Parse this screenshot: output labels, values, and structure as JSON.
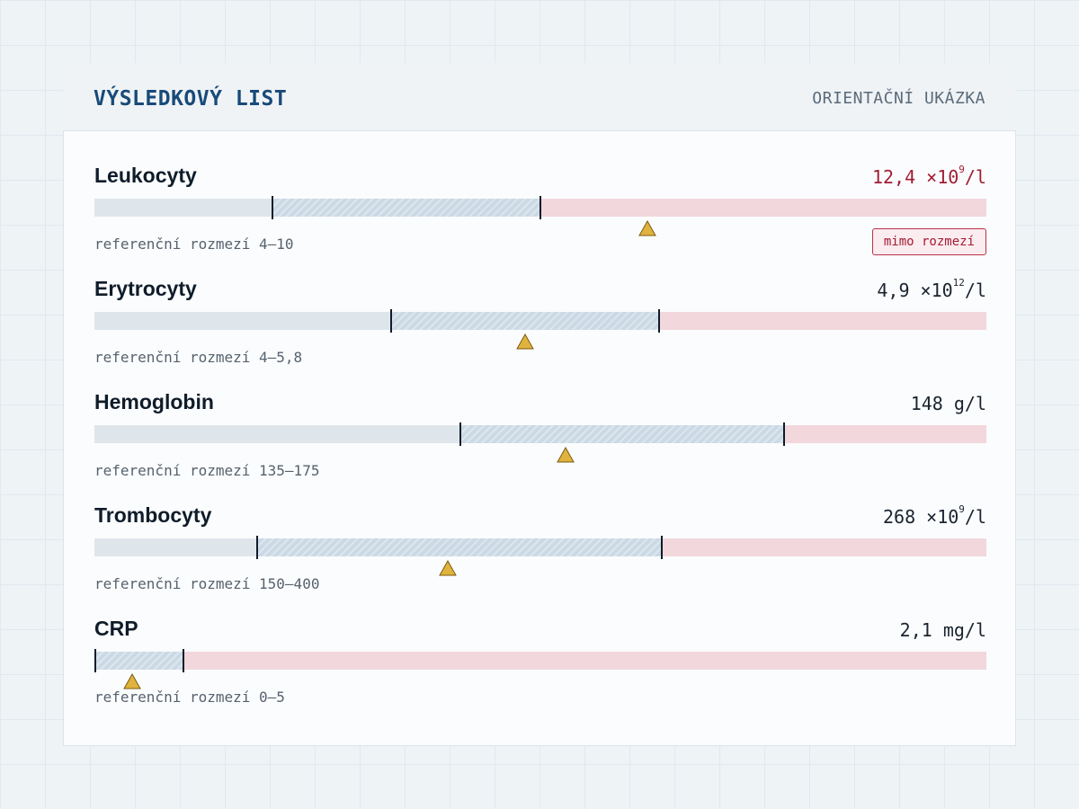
{
  "header": {
    "title": "VÝSLEDKOVÝ LIST",
    "subtitle": "ORIENTAČNÍ UKÁZKA"
  },
  "colors": {
    "accent": "#184a79",
    "out_of_range": "#a11d33",
    "marker": "#e0b33e"
  },
  "results": [
    {
      "name": "Leukocyty",
      "value_main": "12,4 ×10",
      "value_exp": "9",
      "value_unit": "/l",
      "ref_label": "referenční rozmezí 4–10",
      "status": "out",
      "badge": "mimo rozmezí",
      "ref_low_pos": 0.2,
      "ref_high_pos": 0.5,
      "marker_pos": 0.62
    },
    {
      "name": "Erytrocyty",
      "value_main": "4,9 ×10",
      "value_exp": "12",
      "value_unit": "/l",
      "ref_label": "referenční rozmezí 4–5,8",
      "status": "ok",
      "ref_low_pos": 0.333,
      "ref_high_pos": 0.633,
      "marker_pos": 0.483
    },
    {
      "name": "Hemoglobin",
      "value_main": "148 g/l",
      "value_exp": "",
      "value_unit": "",
      "ref_label": "referenční rozmezí 135–175",
      "status": "ok",
      "ref_low_pos": 0.41,
      "ref_high_pos": 0.773,
      "marker_pos": 0.528
    },
    {
      "name": "Trombocyty",
      "value_main": "268 ×10",
      "value_exp": "9",
      "value_unit": "/l",
      "ref_label": "referenční rozmezí 150–400",
      "status": "ok",
      "ref_low_pos": 0.182,
      "ref_high_pos": 0.636,
      "marker_pos": 0.396
    },
    {
      "name": "CRP",
      "value_main": "2,1 mg/l",
      "value_exp": "",
      "value_unit": "",
      "ref_label": "referenční rozmezí 0–5",
      "status": "ok",
      "ref_low_pos": 0.0,
      "ref_high_pos": 0.1,
      "marker_pos": 0.042
    }
  ]
}
